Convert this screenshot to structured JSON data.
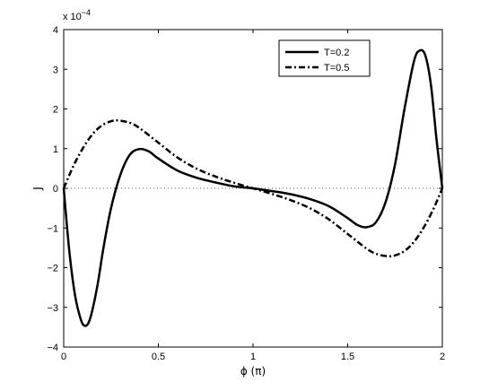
{
  "chart_data": {
    "type": "line",
    "title": "",
    "xlabel": "ϕ (π)",
    "ylabel": "J",
    "scale_note": "x 10",
    "scale_exponent": "−4",
    "xlim": [
      0,
      2
    ],
    "ylim": [
      -4,
      4
    ],
    "x_ticks": [
      "0",
      "0.5",
      "1",
      "1.5",
      "2"
    ],
    "x_tick_values": [
      0,
      0.5,
      1,
      1.5,
      2
    ],
    "y_ticks": [
      "4",
      "3",
      "2",
      "1",
      "0",
      "−1",
      "−2",
      "−3",
      "−4"
    ],
    "y_tick_values": [
      4,
      3,
      2,
      1,
      0,
      -1,
      -2,
      -3,
      -4
    ],
    "grid": false,
    "zero_line": "dotted",
    "legend_position": "top-right",
    "series": [
      {
        "name": "T=0.2",
        "style": "solid",
        "color": "#000000",
        "x": [
          0,
          0.03,
          0.06,
          0.09,
          0.11,
          0.13,
          0.15,
          0.18,
          0.21,
          0.25,
          0.3,
          0.35,
          0.4,
          0.45,
          0.5,
          0.6,
          0.7,
          0.8,
          0.9,
          1.0,
          1.1,
          1.2,
          1.3,
          1.4,
          1.5,
          1.55,
          1.6,
          1.65,
          1.7,
          1.75,
          1.8,
          1.85,
          1.88,
          1.91,
          1.94,
          1.97,
          2.0
        ],
        "y": [
          0,
          -1.6,
          -2.7,
          -3.3,
          -3.46,
          -3.4,
          -3.1,
          -2.4,
          -1.5,
          -0.5,
          0.35,
          0.85,
          0.99,
          0.93,
          0.75,
          0.45,
          0.27,
          0.15,
          0.05,
          0,
          -0.07,
          -0.15,
          -0.27,
          -0.45,
          -0.75,
          -0.92,
          -0.98,
          -0.85,
          -0.35,
          0.6,
          2.0,
          3.2,
          3.47,
          3.35,
          2.6,
          1.2,
          0
        ]
      },
      {
        "name": "T=0.5",
        "style": "dashdot",
        "color": "#000000",
        "x": [
          0,
          0.05,
          0.1,
          0.15,
          0.2,
          0.25,
          0.29,
          0.35,
          0.4,
          0.5,
          0.6,
          0.7,
          0.8,
          0.9,
          1.0,
          1.1,
          1.2,
          1.3,
          1.4,
          1.5,
          1.6,
          1.65,
          1.71,
          1.75,
          1.8,
          1.85,
          1.9,
          1.95,
          2.0
        ],
        "y": [
          0,
          0.55,
          1.0,
          1.35,
          1.58,
          1.69,
          1.71,
          1.65,
          1.52,
          1.15,
          0.78,
          0.5,
          0.3,
          0.14,
          0,
          -0.14,
          -0.3,
          -0.5,
          -0.78,
          -1.15,
          -1.52,
          -1.65,
          -1.71,
          -1.69,
          -1.58,
          -1.35,
          -1.0,
          -0.55,
          0
        ]
      }
    ]
  }
}
